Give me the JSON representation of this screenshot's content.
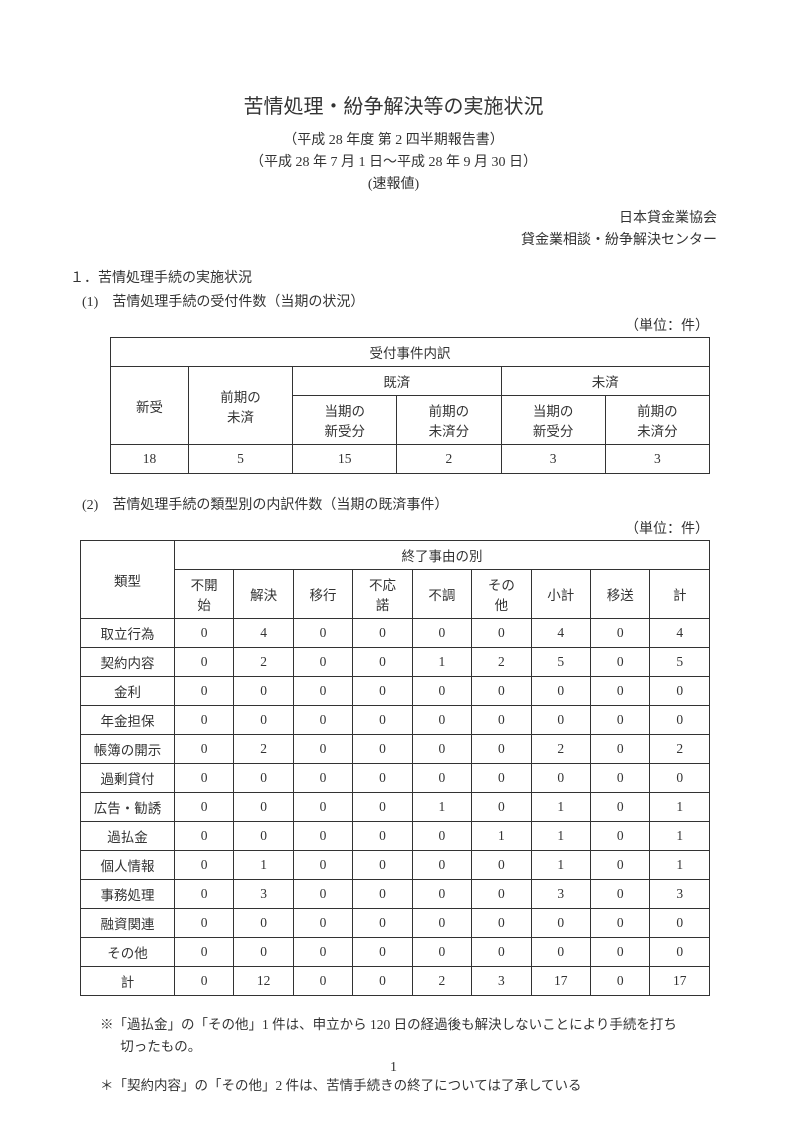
{
  "title": "苦情処理・紛争解決等の実施状況",
  "subtitle1": "（平成 28 年度 第 2 四半期報告書）",
  "subtitle2": "（平成 28 年 7 月 1 日～平成 28 年 9 月 30 日）",
  "subtitle3": "(速報値)",
  "org1": "日本貸金業協会",
  "org2": "貸金業相談・紛争解決センター",
  "section1": "１．苦情処理手続の実施状況",
  "subsection1": "(1)　苦情処理手続の受付件数（当期の状況）",
  "unit_label": "（単位：件）",
  "table1": {
    "header_top": "受付事件内訳",
    "col_new": "新受",
    "col_prev_unfinished": "前期の\n未済",
    "col_finished": "既済",
    "col_unfinished": "未済",
    "sub_current_new": "当期の\n新受分",
    "sub_prev_unfinished": "前期の\n未済分",
    "row": [
      "18",
      "5",
      "15",
      "2",
      "3",
      "3"
    ]
  },
  "subsection2": "(2)　苦情処理手続の類型別の内訳件数（当期の既済事件）",
  "table2": {
    "header_top": "終了事由の別",
    "col_type": "類型",
    "cols": [
      "不開\n始",
      "解決",
      "移行",
      "不応\n諾",
      "不調",
      "その\n他",
      "小計",
      "移送",
      "計"
    ],
    "rows": [
      {
        "label": "取立行為",
        "vals": [
          "0",
          "4",
          "0",
          "0",
          "0",
          "0",
          "4",
          "0",
          "4"
        ]
      },
      {
        "label": "契約内容",
        "vals": [
          "0",
          "2",
          "0",
          "0",
          "1",
          "2",
          "5",
          "0",
          "5"
        ]
      },
      {
        "label": "金利",
        "vals": [
          "0",
          "0",
          "0",
          "0",
          "0",
          "0",
          "0",
          "0",
          "0"
        ]
      },
      {
        "label": "年金担保",
        "vals": [
          "0",
          "0",
          "0",
          "0",
          "0",
          "0",
          "0",
          "0",
          "0"
        ]
      },
      {
        "label": "帳簿の開示",
        "vals": [
          "0",
          "2",
          "0",
          "0",
          "0",
          "0",
          "2",
          "0",
          "2"
        ]
      },
      {
        "label": "過剰貸付",
        "vals": [
          "0",
          "0",
          "0",
          "0",
          "0",
          "0",
          "0",
          "0",
          "0"
        ]
      },
      {
        "label": "広告・勧誘",
        "vals": [
          "0",
          "0",
          "0",
          "0",
          "1",
          "0",
          "1",
          "0",
          "1"
        ]
      },
      {
        "label": "過払金",
        "vals": [
          "0",
          "0",
          "0",
          "0",
          "0",
          "1",
          "1",
          "0",
          "1"
        ]
      },
      {
        "label": "個人情報",
        "vals": [
          "0",
          "1",
          "0",
          "0",
          "0",
          "0",
          "1",
          "0",
          "1"
        ]
      },
      {
        "label": "事務処理",
        "vals": [
          "0",
          "3",
          "0",
          "0",
          "0",
          "0",
          "3",
          "0",
          "3"
        ]
      },
      {
        "label": "融資関連",
        "vals": [
          "0",
          "0",
          "0",
          "0",
          "0",
          "0",
          "0",
          "0",
          "0"
        ]
      },
      {
        "label": "その他",
        "vals": [
          "0",
          "0",
          "0",
          "0",
          "0",
          "0",
          "0",
          "0",
          "0"
        ]
      },
      {
        "label": "計",
        "vals": [
          "0",
          "12",
          "0",
          "0",
          "2",
          "3",
          "17",
          "0",
          "17"
        ]
      }
    ]
  },
  "note1": "※「過払金」の「その他」1 件は、申立から 120 日の経過後も解決しないことにより手続を打ち切ったもの。",
  "note2": "＊「契約内容」の「その他」2 件は、苦情手続きの終了については了承している",
  "page_number": "1",
  "colors": {
    "text": "#333333",
    "border": "#333333",
    "background": "#ffffff"
  },
  "typography": {
    "title_fontsize": 20,
    "body_fontsize": 14,
    "table_fontsize": 13.5,
    "font_family": "serif/Mincho"
  }
}
